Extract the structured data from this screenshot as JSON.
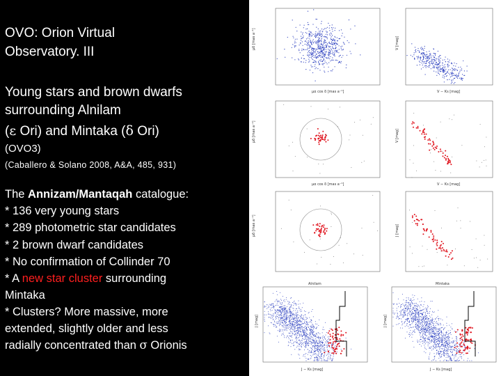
{
  "title": {
    "line1": "OVO: Orion Virtual",
    "line2": "Observatory. III"
  },
  "subtitle": {
    "line1": "Young stars and brown dwarfs",
    "line2": "surrounding Alnilam",
    "line3a": "(",
    "eps": "ε",
    "line3b": " Ori) and Mintaka (",
    "delta": "δ",
    "line3c": " Ori)",
    "line4": "(OVO3)"
  },
  "reference": "(Caballero & Solano 2008, A&A, 485, 931)",
  "body": {
    "intro_pre": "The ",
    "catalogue_name": "Annizam/Mantaqah",
    "intro_post": " catalogue:",
    "items": [
      "* 136 very young stars",
      "* 289 photometric star candidates",
      "* 2 brown dwarf candidates",
      "* No confirmation of Collinder 70"
    ],
    "item5_pre": "* A ",
    "item5_red": "new star cluster",
    "item5_post": " surrounding",
    "item5_line2": "Mintaka",
    "item6_lines": [
      "* Clusters? More massive, more",
      "extended, slightly older and less"
    ],
    "item7_pre": "radially concentrated than ",
    "sigma": "σ",
    "item7_post": " Orionis"
  },
  "figures": {
    "pm_ylabel": "μδ [mas a⁻¹]",
    "pm_xlabel": "μα cos δ [mas a⁻¹]",
    "cmd_ylabel": "V [mag]",
    "cmd_xlabel": "V − Ks [mag]",
    "cmd3_ylabel": "J [mag]",
    "cmd3_xlabel": "J − Ks [mag]",
    "left_label": "Alnilam",
    "right_label": "Mintaka",
    "bottom_ylabel": "J [mag]",
    "bottom_xlabel": "J − Ks [mag]",
    "colors": {
      "panel_bg": "#ffffff",
      "blue_points": "#2b3fbf",
      "red_points": "#e0141e",
      "frame": "#555555"
    }
  }
}
